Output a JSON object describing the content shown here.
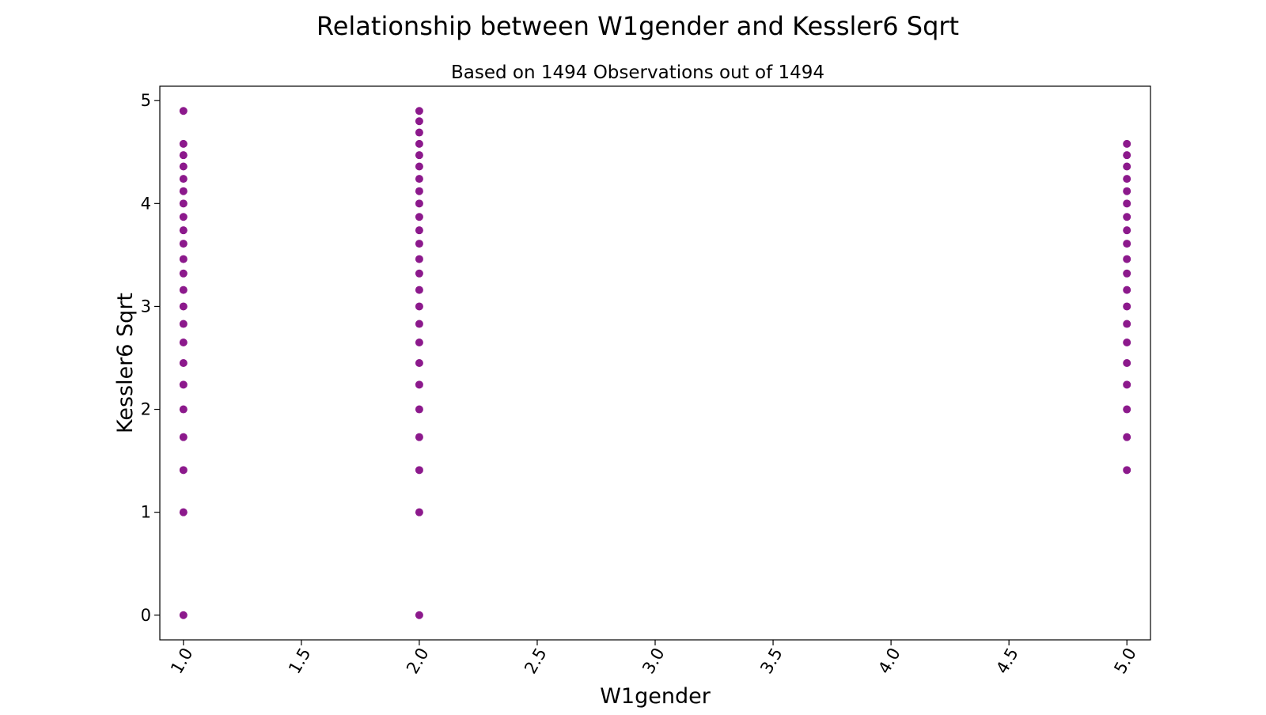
{
  "chart_data": {
    "type": "scatter",
    "title": "Relationship between W1gender and Kessler6 Sqrt",
    "subtitle": "Based on 1494 Observations out of 1494",
    "xlabel": "W1gender",
    "ylabel": "Kessler6 Sqrt",
    "xlim": [
      0.9,
      5.1
    ],
    "ylim": [
      -0.24,
      5.14
    ],
    "x_ticks": [
      1.0,
      1.5,
      2.0,
      2.5,
      3.0,
      3.5,
      4.0,
      4.5,
      5.0
    ],
    "x_tick_labels": [
      "1.0",
      "1.5",
      "2.0",
      "2.5",
      "3.0",
      "3.5",
      "4.0",
      "4.5",
      "5.0"
    ],
    "y_ticks": [
      0,
      1,
      2,
      3,
      4,
      5
    ],
    "y_tick_labels": [
      "0",
      "1",
      "2",
      "3",
      "4",
      "5"
    ],
    "x_tick_rotation_deg": -60,
    "grid": false,
    "marker_color": "#800080",
    "marker_alpha": 0.5,
    "series": [
      {
        "x_value": 1.0,
        "y_values": [
          0,
          1,
          1.41,
          1.73,
          2,
          2.24,
          2.45,
          2.65,
          2.83,
          3,
          3.16,
          3.32,
          3.46,
          3.61,
          3.74,
          3.87,
          4,
          4.12,
          4.24,
          4.36,
          4.47,
          4.58,
          4.9
        ]
      },
      {
        "x_value": 2.0,
        "y_values": [
          0,
          1,
          1.41,
          1.73,
          2,
          2.24,
          2.45,
          2.65,
          2.83,
          3,
          3.16,
          3.32,
          3.46,
          3.61,
          3.74,
          3.87,
          4,
          4.12,
          4.24,
          4.36,
          4.47,
          4.58,
          4.69,
          4.8,
          4.9
        ]
      },
      {
        "x_value": 5.0,
        "y_values": [
          1.41,
          1.73,
          2,
          2.24,
          2.45,
          2.65,
          2.83,
          3,
          3.16,
          3.32,
          3.46,
          3.61,
          3.74,
          3.87,
          4,
          4.12,
          4.24,
          4.36,
          4.47,
          4.58
        ]
      }
    ]
  }
}
